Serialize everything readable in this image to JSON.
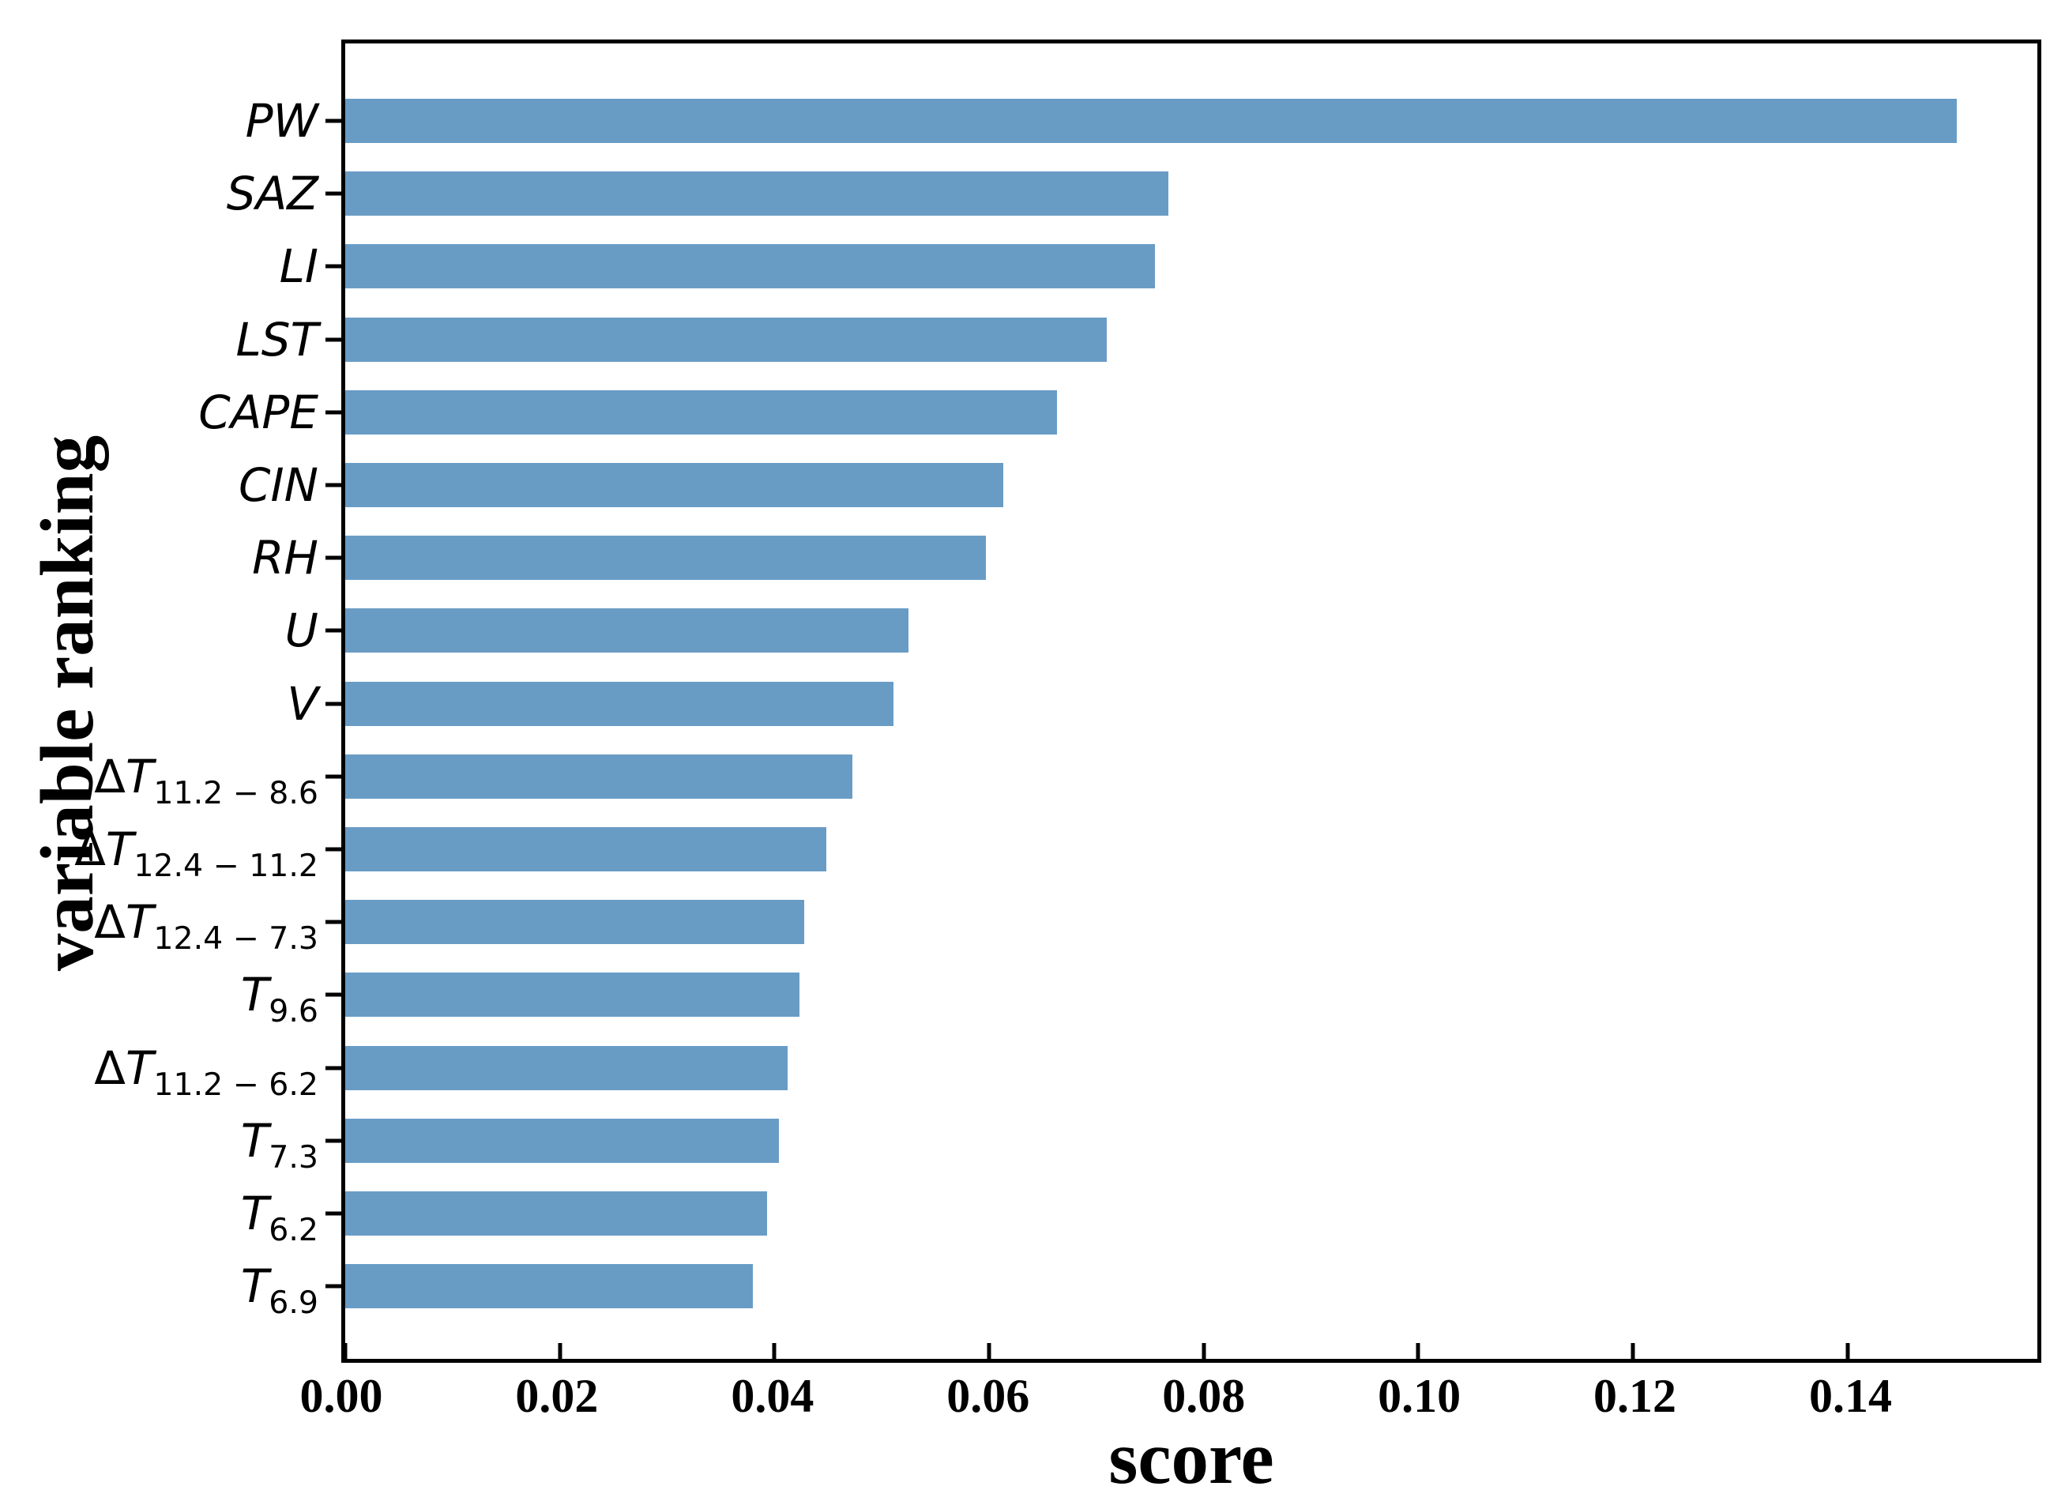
{
  "chart_data": {
    "type": "bar",
    "orientation": "horizontal",
    "title": "",
    "xlabel": "score",
    "ylabel": "variable ranking",
    "bar_color": "#699CC5",
    "axis_color": "#000000",
    "background_color": "#ffffff",
    "xlim": [
      0,
      0.1577
    ],
    "xticks": [
      {
        "value": 0.0,
        "label": "0.00"
      },
      {
        "value": 0.02,
        "label": "0.02"
      },
      {
        "value": 0.04,
        "label": "0.04"
      },
      {
        "value": 0.06,
        "label": "0.06"
      },
      {
        "value": 0.08,
        "label": "0.08"
      },
      {
        "value": 0.1,
        "label": "0.10"
      },
      {
        "value": 0.12,
        "label": "0.12"
      },
      {
        "value": 0.14,
        "label": "0.14"
      }
    ],
    "grid": false,
    "legend": null,
    "categories": [
      {
        "prefix": "",
        "base": "PW",
        "sub": ""
      },
      {
        "prefix": "",
        "base": "SAZ",
        "sub": ""
      },
      {
        "prefix": "",
        "base": "LI",
        "sub": ""
      },
      {
        "prefix": "",
        "base": "LST",
        "sub": ""
      },
      {
        "prefix": "",
        "base": "CAPE",
        "sub": ""
      },
      {
        "prefix": "",
        "base": "CIN",
        "sub": ""
      },
      {
        "prefix": "",
        "base": "RH",
        "sub": ""
      },
      {
        "prefix": "",
        "base": "U",
        "sub": ""
      },
      {
        "prefix": "",
        "base": "V",
        "sub": ""
      },
      {
        "prefix": "Δ",
        "base": "T",
        "sub": "11.2 − 8.6"
      },
      {
        "prefix": "Δ",
        "base": "T",
        "sub": "12.4 − 11.2"
      },
      {
        "prefix": "Δ",
        "base": "T",
        "sub": "12.4 − 7.3"
      },
      {
        "prefix": "",
        "base": "T",
        "sub": "9.6"
      },
      {
        "prefix": "Δ",
        "base": "T",
        "sub": "11.2 − 6.2"
      },
      {
        "prefix": "",
        "base": "T",
        "sub": "7.3"
      },
      {
        "prefix": "",
        "base": "T",
        "sub": "6.2"
      },
      {
        "prefix": "",
        "base": "T",
        "sub": "6.9"
      }
    ],
    "values": [
      0.1502,
      0.0767,
      0.0755,
      0.071,
      0.0663,
      0.0613,
      0.0597,
      0.0525,
      0.0511,
      0.0473,
      0.0448,
      0.0428,
      0.0423,
      0.0412,
      0.0404,
      0.0393,
      0.038
    ]
  }
}
